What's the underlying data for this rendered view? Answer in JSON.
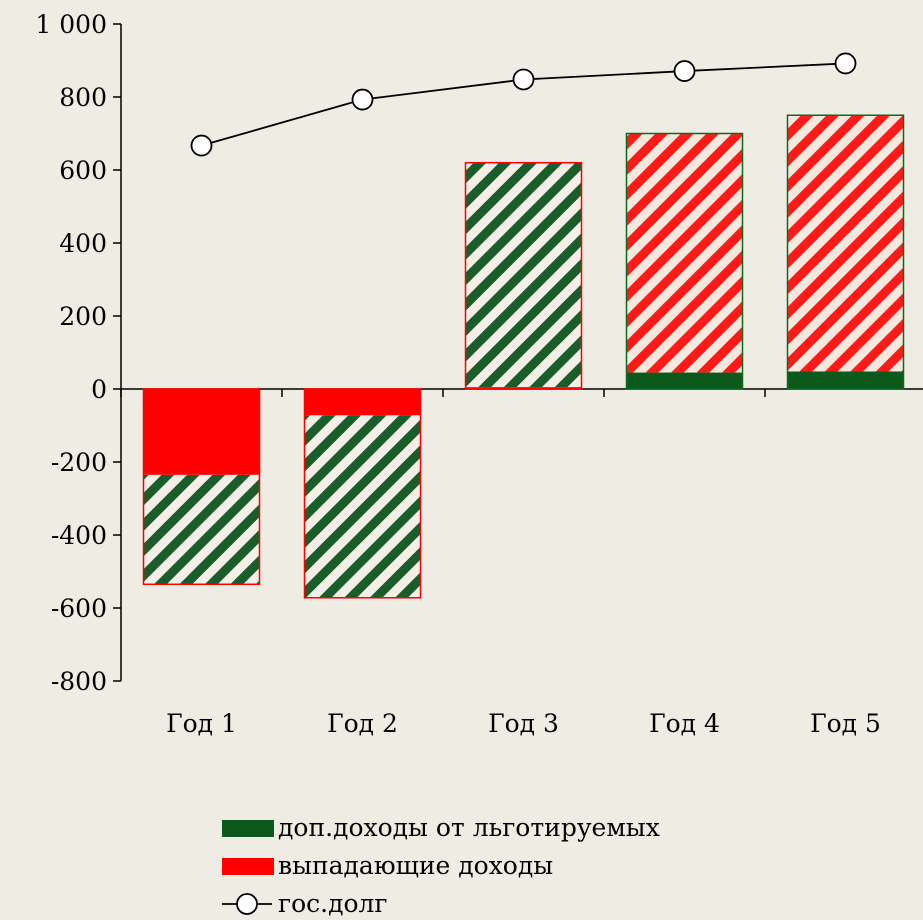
{
  "chart_data": {
    "type": "bar",
    "categories": [
      "Год 1",
      "Год 2",
      "Год 3",
      "Год 4",
      "Год 5"
    ],
    "ylim": [
      -800,
      1000
    ],
    "yticks": [
      1000,
      800,
      600,
      400,
      200,
      0,
      -200,
      -400,
      -600,
      -800
    ],
    "ytick_labels": [
      "1 000",
      "800",
      "600",
      "400",
      "200",
      "0",
      "-200",
      "-400",
      "-600",
      "-800"
    ],
    "bars": [
      {
        "category": "Год 1",
        "solid_from": 0,
        "solid_to": -235,
        "solid_series": "выпадающие доходы",
        "hatched_from": -235,
        "hatched_to": -535,
        "hatched_color": "#1a5c2a",
        "outline": "#ff0000"
      },
      {
        "category": "Год 2",
        "solid_from": 0,
        "solid_to": -72,
        "solid_series": "выпадающие доходы",
        "hatched_from": -72,
        "hatched_to": -572,
        "hatched_color": "#1a5c2a",
        "outline": "#ff0000"
      },
      {
        "category": "Год 3",
        "solid_from": 0,
        "solid_to": 5,
        "solid_series": "выпадающие доходы",
        "hatched_from": 5,
        "hatched_to": 620,
        "hatched_color": "#1a5c2a",
        "outline": "#ff0000"
      },
      {
        "category": "Год 4",
        "solid_from": 0,
        "solid_to": 45,
        "solid_series": "доп.доходы от льготируемых",
        "hatched_from": 45,
        "hatched_to": 700,
        "hatched_color": "#ff0000",
        "outline": "#0b6a1e"
      },
      {
        "category": "Год 5",
        "solid_from": 0,
        "solid_to": 48,
        "solid_series": "доп.доходы от льготируемых",
        "hatched_from": 48,
        "hatched_to": 750,
        "hatched_color": "#ff0000",
        "outline": "#0b6a1e"
      }
    ],
    "series": [
      {
        "name": "доп.доходы от льготируемых",
        "type": "bar",
        "color": "#0b5a1c"
      },
      {
        "name": "выпадающие доходы",
        "type": "bar",
        "color": "#ff0000"
      },
      {
        "name": "гос.долг",
        "type": "line",
        "color": "#000000",
        "marker": "open-circle",
        "values": [
          667,
          793,
          848,
          871,
          892
        ]
      }
    ],
    "grid": false,
    "legend_position": "bottom-center",
    "background": "#eeece3"
  }
}
